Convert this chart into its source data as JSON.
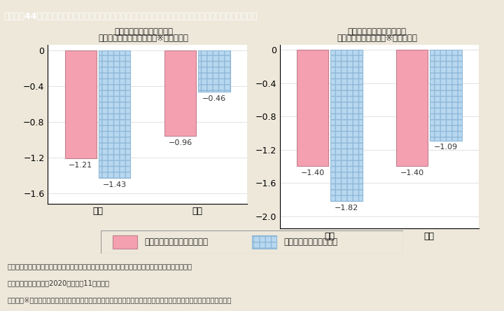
{
  "title": "Ｉ－特－44図　家族と過ごす時間の変化と「子育てのしやすさ満足度」・「満足度（生活全体）」の変化",
  "chart1_title_l1": "家族と過ごす時間の変化と",
  "chart1_title_l2": "「子育てのしやすさ満足度※」の低下幅",
  "chart2_title_l1": "家族と過ごす時間の変化と",
  "chart2_title_l2": "「満足度（生活全体）※」の低下幅",
  "categories": [
    "女性",
    "男性"
  ],
  "chart1_values_pink": [
    -1.21,
    -0.96
  ],
  "chart1_values_blue": [
    -1.43,
    -0.46
  ],
  "chart2_values_pink": [
    -1.4,
    -1.4
  ],
  "chart2_values_blue": [
    -1.82,
    -1.09
  ],
  "chart1_ylim": [
    -1.72,
    0.06
  ],
  "chart2_ylim": [
    -2.15,
    0.06
  ],
  "chart1_yticks": [
    0,
    -0.4,
    -0.8,
    -1.2,
    -1.6
  ],
  "chart2_yticks": [
    0,
    -0.4,
    -0.8,
    -1.2,
    -1.6,
    -2.0
  ],
  "legend_pink_label": "家族と過ごす時間が変化せず",
  "legend_blue_label": "家族と過ごす時間が増加",
  "pink_color": "#F4A0B0",
  "blue_color": "#B8D8F0",
  "background_color": "#EDE8DA",
  "chart_bg_color": "#FFFFFF",
  "title_bg_color": "#3CACC8",
  "title_text_color": "#FFFFFF",
  "grid_color": "#DDDDDD",
  "label_color": "#333333",
  "footer_line1": "（備考）１．内閣府「満足度・生活の質に関する調査」に関する第４次報告書」より引用・作成。",
  "footer_line2": "　　　　２．令和２（2020）年９月11日公表。",
  "footer_line3": "　　　　※「感染症拡大前」と「感染症影響下」の子育てのしやすさ満足度，満足度（生活全体）を数値化したもの。"
}
